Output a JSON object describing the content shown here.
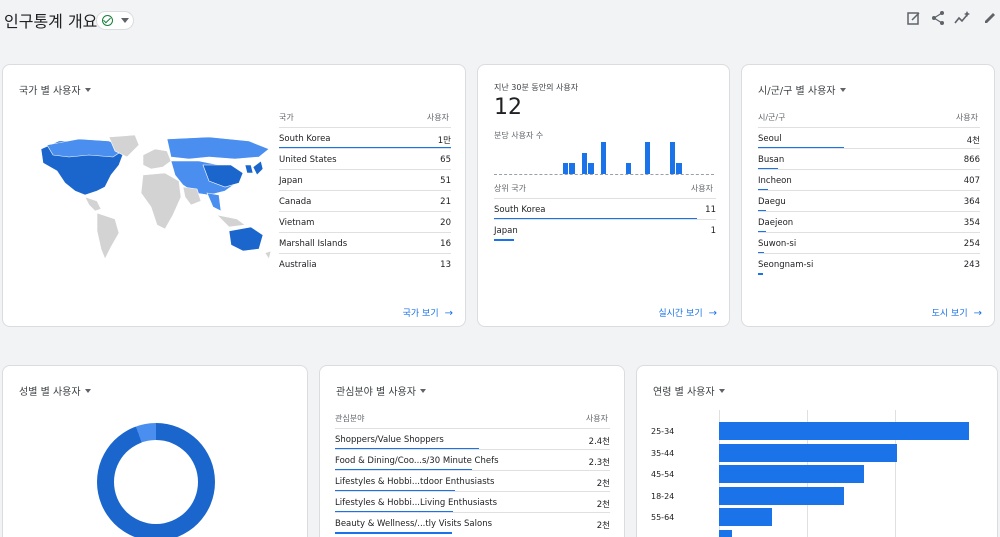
{
  "page": {
    "title": "인구통계 개요",
    "toolbar_icons": [
      "edit-report-icon",
      "share-icon",
      "insights-icon",
      "pencil-icon"
    ]
  },
  "country_card": {
    "title": "국가 별 사용자",
    "col_country": "국가",
    "col_users": "사용자",
    "rows": [
      {
        "label": "South Korea",
        "value": "1만",
        "share": 1.0
      },
      {
        "label": "United States",
        "value": "65",
        "share": 0.0
      },
      {
        "label": "Japan",
        "value": "51",
        "share": 0.0
      },
      {
        "label": "Canada",
        "value": "21",
        "share": 0.0
      },
      {
        "label": "Vietnam",
        "value": "20",
        "share": 0.0
      },
      {
        "label": "Marshall Islands",
        "value": "16",
        "share": 0.0
      },
      {
        "label": "Australia",
        "value": "13",
        "share": 0.0
      }
    ],
    "link": "국가 보기",
    "colors": {
      "high": "#1a66cc",
      "mid": "#4a8ff0",
      "none": "#d3d3d3"
    }
  },
  "realtime_card": {
    "title": "지난 30분 동안의 사용자",
    "value": "12",
    "per_minute_label": "분당 사용자 수",
    "col_country": "상위 국가",
    "col_users": "사용자",
    "per_minute_values": [
      0,
      0,
      0,
      0,
      0,
      0,
      0,
      0,
      0,
      0,
      0,
      1,
      1,
      0,
      2,
      1,
      0,
      3,
      0,
      0,
      0,
      1,
      0,
      0,
      3,
      0,
      0,
      0,
      3,
      1,
      0,
      0,
      0,
      0,
      0
    ],
    "rows": [
      {
        "label": "South Korea",
        "value": "11",
        "share": 1.0
      },
      {
        "label": "Japan",
        "value": "1",
        "share": 0.09
      }
    ],
    "link": "실시간 보기"
  },
  "city_card": {
    "title": "시/군/구 별 사용자",
    "col_city": "시/군/구",
    "col_users": "사용자",
    "rows": [
      {
        "label": "Seoul",
        "value": "4천",
        "share": 1.0
      },
      {
        "label": "Busan",
        "value": "866",
        "share": 0.2
      },
      {
        "label": "Incheon",
        "value": "407",
        "share": 0.1
      },
      {
        "label": "Daegu",
        "value": "364",
        "share": 0.09
      },
      {
        "label": "Daejeon",
        "value": "354",
        "share": 0.09
      },
      {
        "label": "Suwon-si",
        "value": "254",
        "share": 0.06
      },
      {
        "label": "Seongnam-si",
        "value": "243",
        "share": 0.06
      }
    ],
    "link": "도시 보기"
  },
  "gender_card": {
    "title": "성별 별 사용자"
  },
  "interest_card": {
    "title": "관심분야 별 사용자",
    "col_interest": "관심분야",
    "col_users": "사용자",
    "rows": [
      {
        "label": "Shoppers/Value Shoppers",
        "value": "2.4천",
        "share": 1.0
      },
      {
        "label": "Food & Dining/Coo...s/30 Minute Chefs",
        "value": "2.3천",
        "share": 0.95
      },
      {
        "label": "Lifestyles & Hobbi...tdoor Enthusiasts",
        "value": "2천",
        "share": 0.83
      },
      {
        "label": "Lifestyles & Hobbi...Living Enthusiasts",
        "value": "2천",
        "share": 0.82
      },
      {
        "label": "Beauty & Wellness/...tly Visits Salons",
        "value": "2천",
        "share": 0.81
      }
    ]
  },
  "age_card": {
    "title": "연령 별 사용자",
    "rows": [
      {
        "label": "25-34",
        "share": 1.0
      },
      {
        "label": "35-44",
        "share": 0.71
      },
      {
        "label": "45-54",
        "share": 0.58
      },
      {
        "label": "18-24",
        "share": 0.5
      },
      {
        "label": "55-64",
        "share": 0.21
      },
      {
        "label": "",
        "share": 0.05
      }
    ]
  }
}
